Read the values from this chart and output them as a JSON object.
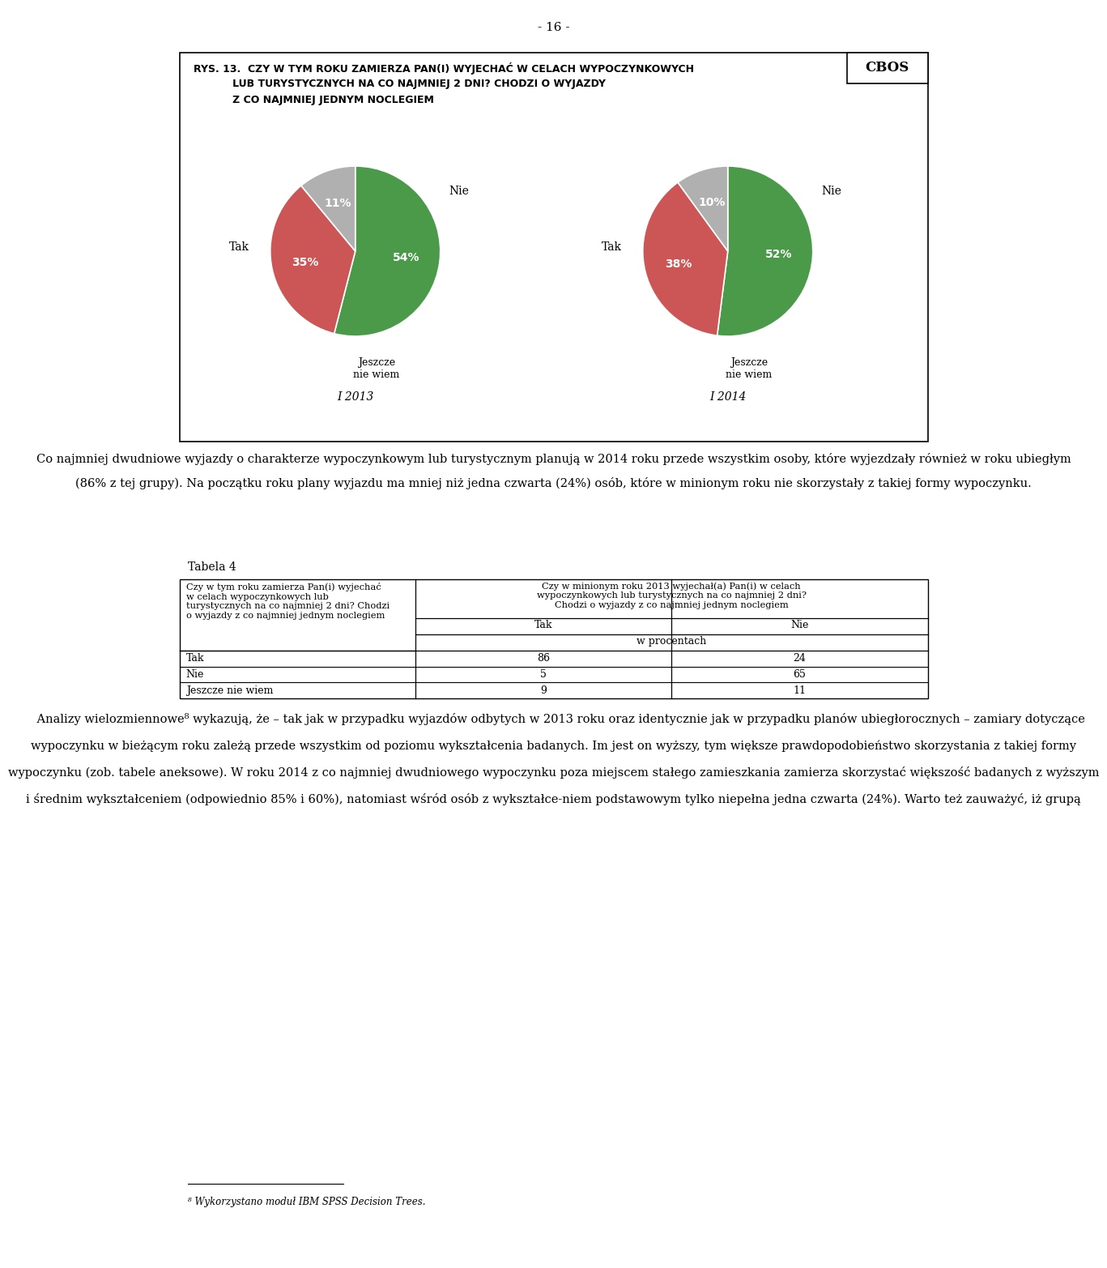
{
  "page_number": "- 16 -",
  "cbos_label": "CBOS",
  "pie1": {
    "values": [
      54,
      35,
      11
    ],
    "colors": [
      "#4a9a4a",
      "#cc5555",
      "#b0b0b0"
    ],
    "pct_labels": [
      "54%",
      "35%",
      "11%"
    ],
    "year": "I 2013"
  },
  "pie2": {
    "values": [
      52,
      38,
      10
    ],
    "colors": [
      "#4a9a4a",
      "#cc5555",
      "#b0b0b0"
    ],
    "pct_labels": [
      "52%",
      "38%",
      "10%"
    ],
    "year": "I 2014"
  },
  "title_line1": "RYS. 13.  CZY W TYM ROKU ZAMIERZA PAN(I) WYJECHAĆ W CELACH WYPOCZYNKOWYCH",
  "title_line2": "           LUB TURYSTYCZNYCH NA CO NAJMNIEJ 2 DNI? CHODZI O WYJAZDY",
  "title_line3": "           Z CO NAJMNIEJ JEDNYM NOCLEGIEM",
  "para1_lines": [
    "Co najmniej dwudniowe wyjazdy o charakterze wypoczynkowym lub turystycznym planują w 2014 roku przede wszystkim osoby, które wyjezdzały również w roku ubiegłym",
    "(86% z tej grupy). Na początku roku plany wyjazdu ma mniej niż jedna czwarta (24%) osób, które w minionym roku nie skorzystały z takiej formy wypoczynku."
  ],
  "tabela_title": "Tabela 4",
  "table_left_header": "Czy w tym roku zamierza Pan(i) wyjechać\nw celach wypoczynkowych lub\nturystycznych na co najmniej 2 dni? Chodzi\no wyjazdy z co najmniej jednym noclegiem",
  "table_right_header": "Czy w minionym roku 2013 wyjechał(a) Pan(i) w celach\nwypoczynkowych lub turystycznych na co najmniej 2 dni?\nChodzi o wyjazdy z co najmniej jednym noclegiem",
  "table_rows": [
    {
      "label": "Tak",
      "tak": "86",
      "nie": "24"
    },
    {
      "label": "Nie",
      "tak": "5",
      "nie": "65"
    },
    {
      "label": "Jeszcze nie wiem",
      "tak": "9",
      "nie": "11"
    }
  ],
  "para2_lines": [
    "    Analizy wielozmiennowe⁸ wykazują, że – tak jak w przypadku wyjazdów odbytych w 2013 roku oraz identycznie jak w przypadku planów ubiegłorocznych – zamiary dotyczące",
    "wypoczynku w bieżącym roku zależą przede wszystkim od poziomu wykształcenia badanych. Im jest on wyższy, tym większe prawdopodobieństwo skorzystania z takiej formy",
    "wypoczynku (zob. tabele aneksowe). W roku 2014 z co najmniej dwudniowego wypoczynku poza miejscem stałego zamieszkania zamierza skorzystać większość badanych z wyższym",
    "i średnim wykształceniem (odpowiednio 85% i 60%), natomiast wśród osób z wykształce-niem podstawowym tylko niepełna jedna czwarta (24%). Warto też zauważyć, iż grupą"
  ],
  "footnote_line": "⁸ Wykorzystano moduł IBM SPSS Decision Trees."
}
